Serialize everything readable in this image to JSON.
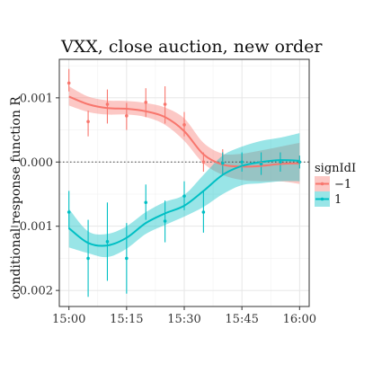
{
  "chart_data": {
    "type": "line",
    "title": "VXX, close auction, new order",
    "xlabel": "",
    "ylabel": "conditional response function R",
    "x_tick_labels": [
      "15:00",
      "15:15",
      "15:30",
      "15:45",
      "16:00"
    ],
    "x_tick_minutes": [
      0,
      15,
      30,
      45,
      60
    ],
    "xlim": [
      -2.5,
      62.5
    ],
    "y_tick_labels": [
      "0.001",
      "0.000",
      "−0.001",
      "−0.002"
    ],
    "y_tick_values": [
      0.001,
      0.0,
      -0.001,
      -0.002
    ],
    "ylim": [
      -0.00225,
      0.0016
    ],
    "reference_line_y": 0,
    "grid": true,
    "legend": {
      "title": "signIdI",
      "placement": "right",
      "entries": [
        "−1",
        "1"
      ]
    },
    "x_minutes": [
      0,
      5,
      10,
      15,
      20,
      25,
      30,
      35,
      40,
      45,
      50,
      55,
      60
    ],
    "series": [
      {
        "name": "−1",
        "color": "#F8766D",
        "points": [
          0.00123,
          0.00063,
          0.0009,
          0.00072,
          0.00093,
          0.0009,
          0.00058,
          0.0,
          -2e-05,
          0.0,
          -2e-05,
          0.0,
          0.0
        ],
        "error_low": [
          0.0011,
          0.0004,
          0.0006,
          0.0005,
          0.0007,
          0.0006,
          0.0004,
          -0.00015,
          -0.0002,
          -5e-05,
          -0.0002,
          -0.00015,
          -0.0001
        ],
        "error_high": [
          0.00145,
          0.0008,
          0.00113,
          0.00092,
          0.00115,
          0.00118,
          0.00078,
          0.00015,
          0.0002,
          0.0001,
          0.00015,
          0.00015,
          0.0001
        ],
        "smooth": [
          0.00102,
          0.0009,
          0.00084,
          0.00083,
          0.00079,
          0.0007,
          0.00048,
          0.00012,
          -4e-05,
          -7e-05,
          -6e-05,
          -3e-05,
          -2e-05
        ],
        "band_low": [
          0.00088,
          0.00078,
          0.00074,
          0.00074,
          0.0007,
          0.00058,
          0.00033,
          -2e-05,
          -0.0002,
          -0.00028,
          -0.0003,
          -0.0003,
          -0.00034
        ],
        "band_high": [
          0.00118,
          0.00102,
          0.00096,
          0.00095,
          0.00092,
          0.00085,
          0.00068,
          0.0003,
          0.00013,
          0.00013,
          0.00018,
          0.00024,
          0.0003
        ]
      },
      {
        "name": "1",
        "color": "#00BFC4",
        "points": [
          -0.00078,
          -0.0015,
          -0.00124,
          -0.0015,
          -0.00063,
          -0.00092,
          -0.00053,
          -0.00078,
          -2e-05,
          0.0,
          -3e-05,
          0.0,
          0.0
        ],
        "error_low": [
          -0.00105,
          -0.0021,
          -0.00185,
          -0.00205,
          -0.0009,
          -0.00125,
          -0.00075,
          -0.0011,
          -0.0002,
          -0.00015,
          -0.0002,
          -0.00015,
          -0.0001
        ],
        "error_high": [
          -0.00045,
          -0.0009,
          -0.00063,
          -0.00095,
          -0.00035,
          -0.0006,
          -0.0003,
          -0.00045,
          0.00015,
          0.00015,
          0.00015,
          0.00015,
          0.0001
        ],
        "smooth": [
          -0.00103,
          -0.00126,
          -0.0013,
          -0.00118,
          -0.00095,
          -0.0008,
          -0.00068,
          -0.00045,
          -0.0002,
          -6e-05,
          0.0,
          3e-05,
          2e-05
        ],
        "band_low": [
          -0.00133,
          -0.00142,
          -0.00148,
          -0.00135,
          -0.00112,
          -0.00098,
          -0.00085,
          -0.0007,
          -0.0005,
          -0.00036,
          -0.00033,
          -0.0003,
          -0.0003
        ],
        "band_high": [
          -0.00073,
          -0.00108,
          -0.00112,
          -0.001,
          -0.00078,
          -0.00062,
          -0.00051,
          -0.0002,
          0.0001,
          0.00024,
          0.00033,
          0.00038,
          0.00045
        ]
      }
    ]
  }
}
